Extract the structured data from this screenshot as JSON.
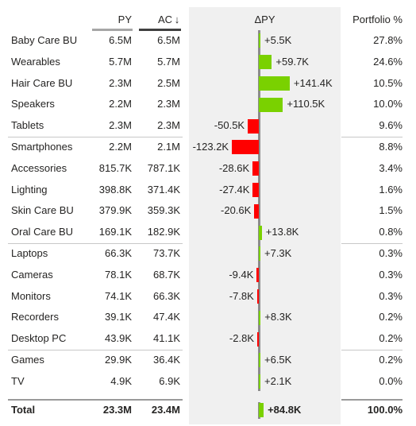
{
  "headers": {
    "py": "PY",
    "ac": "AC",
    "ac_sort_icon": "arrow-down-icon",
    "dpy": "ΔPY",
    "portfolio": "Portfolio %"
  },
  "colors": {
    "positive": "#7ad100",
    "negative": "#ff0000",
    "axis": "#8c8c8c",
    "dpy_background": "#f0f0f0",
    "py_underline": "#a6a6a6",
    "ac_underline": "#404040"
  },
  "chart_data": {
    "type": "bar",
    "orientation": "horizontal",
    "title": "",
    "categories": [
      "Baby Care BU",
      "Wearables",
      "Hair Care BU",
      "Speakers",
      "Tablets",
      "Smartphones",
      "Accessories",
      "Lighting",
      "Skin Care BU",
      "Oral Care BU",
      "Laptops",
      "Cameras",
      "Monitors",
      "Recorders",
      "Desktop PC",
      "Games",
      "TV"
    ],
    "py_labels": [
      "6.5M",
      "5.7M",
      "2.3M",
      "2.2M",
      "2.3M",
      "2.2M",
      "815.7K",
      "398.8K",
      "379.9K",
      "169.1K",
      "66.3K",
      "78.1K",
      "74.1K",
      "39.1K",
      "43.9K",
      "29.9K",
      "4.9K"
    ],
    "ac_labels": [
      "6.5M",
      "5.7M",
      "2.5M",
      "2.3M",
      "2.3M",
      "2.1M",
      "787.1K",
      "371.4K",
      "359.3K",
      "182.9K",
      "73.7K",
      "68.7K",
      "66.3K",
      "47.4K",
      "41.1K",
      "36.4K",
      "6.9K"
    ],
    "delta_values": [
      5.5,
      59.7,
      141.4,
      110.5,
      -50.5,
      -123.2,
      -28.6,
      -27.4,
      -20.6,
      13.8,
      7.3,
      -9.4,
      -7.8,
      8.3,
      -2.8,
      6.5,
      2.1
    ],
    "delta_labels": [
      "+5.5K",
      "+59.7K",
      "+141.4K",
      "+110.5K",
      "-50.5K",
      "-123.2K",
      "-28.6K",
      "-27.4K",
      "-20.6K",
      "+13.8K",
      "+7.3K",
      "-9.4K",
      "-7.8K",
      "+8.3K",
      "-2.8K",
      "+6.5K",
      "+2.1K"
    ],
    "delta_unit": "K",
    "portfolio_labels": [
      "27.8%",
      "24.6%",
      "10.5%",
      "10.0%",
      "9.6%",
      "8.8%",
      "3.4%",
      "1.6%",
      "1.5%",
      "0.8%",
      "0.3%",
      "0.3%",
      "0.3%",
      "0.2%",
      "0.2%",
      "0.2%",
      "0.0%"
    ],
    "group_breaks_after": [
      4,
      9,
      14
    ],
    "total": {
      "label": "Total",
      "py": "23.3M",
      "ac": "23.4M",
      "delta_value": 84.8,
      "delta_label": "+84.8K",
      "portfolio": "100.0%"
    }
  }
}
